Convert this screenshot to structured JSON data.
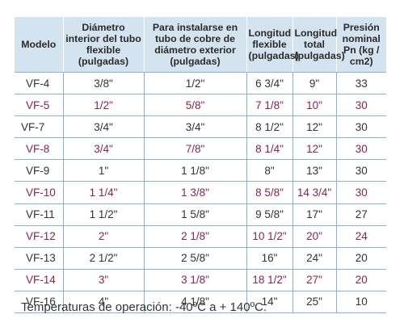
{
  "headers": [
    "Modelo",
    "Diámetro interior del tubo flexible (pulgadas)",
    "Para instalarse en tubo de cobre de diámetro exterior (pulgadas)",
    "Longitud flexible (pulgadas)",
    "Longitud total (pulgadas)",
    "Presión nominal Pn (kg / cm2)"
  ],
  "rows": [
    [
      "VF-4",
      "3/8\"",
      "1/2\"",
      "6 3/4\"",
      "9\"",
      "33"
    ],
    [
      "VF-5",
      "1/2\"",
      "5/8\"",
      "7 1/8\"",
      "10\"",
      "30"
    ],
    [
      "VF-7",
      "3/4\"",
      "3/4\"",
      "8 1/2\"",
      "12\"",
      "30"
    ],
    [
      "VF-8",
      "3/4\"",
      "7/8\"",
      "8 1/4\"",
      "12\"",
      "30"
    ],
    [
      "VF-9",
      "1\"",
      "1 1/8\"",
      "8\"",
      "13\"",
      "30"
    ],
    [
      "VF-10",
      "1 1/4\"",
      "1 3/8\"",
      "8 5/8\"",
      "14 3/4\"",
      "30"
    ],
    [
      "VF-11",
      "1 1/2\"",
      "1 5/8\"",
      "9 5/8\"",
      "17\"",
      "27"
    ],
    [
      "VF-12",
      "2\"",
      "2 1/8\"",
      "10 1/2\"",
      "20\"",
      "24"
    ],
    [
      "VF-13",
      "2 1/2\"",
      "2 5/8\"",
      "16\"",
      "24\"",
      "20"
    ],
    [
      "VF-14",
      "3\"",
      "3 1/8\"",
      "18 1/2\"",
      "27\"",
      "20"
    ],
    [
      "VF-16",
      "4\"",
      "4 1/8\"",
      "14\"",
      "25\"",
      "10"
    ]
  ],
  "note": "Temperaturas de operación: -40ºC a + 140ºC.",
  "colors": {
    "header_bg": "#d3e4f0",
    "rule": "#8ab2d0",
    "text": "#333333",
    "alt_text": "#8c2252"
  }
}
